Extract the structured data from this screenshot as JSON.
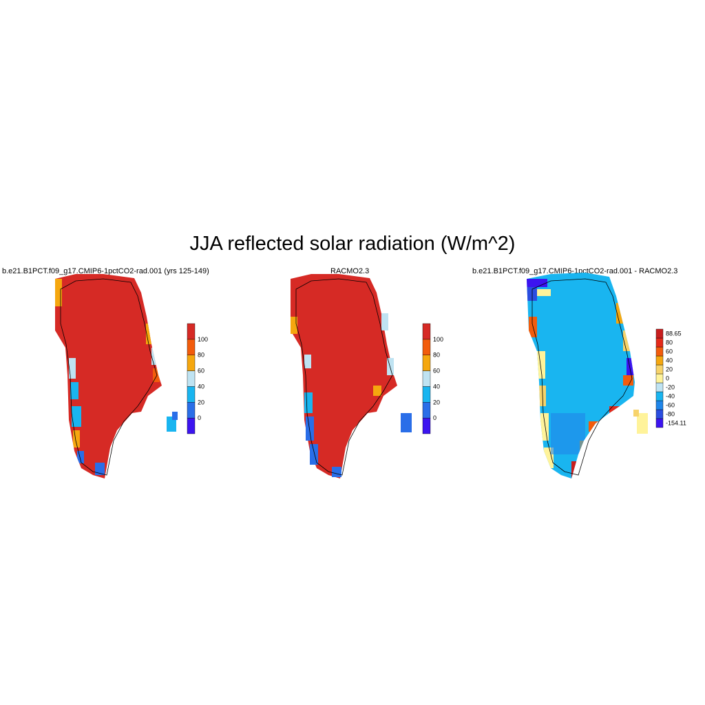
{
  "title": "JJA reflected solar radiation (W/m^2)",
  "panels": [
    {
      "title": "b.e21.B1PCT.f09_g17.CMIP6-1pctCO2-rad.001 (yrs 125-149)",
      "colorbar": {
        "colors": [
          "#3c14f0",
          "#2a6ee8",
          "#19b5f0",
          "#bfe3f2",
          "#f5a70f",
          "#f25c0c",
          "#d62a25"
        ],
        "labels": [
          "0",
          "20",
          "40",
          "60",
          "80",
          "100"
        ]
      }
    },
    {
      "title": "RACMO2.3",
      "colorbar": {
        "colors": [
          "#3c14f0",
          "#2a6ee8",
          "#19b5f0",
          "#bfe3f2",
          "#f5a70f",
          "#f25c0c",
          "#d62a25"
        ],
        "labels": [
          "0",
          "20",
          "40",
          "60",
          "80",
          "100"
        ]
      }
    },
    {
      "title": "b.e21.B1PCT.f09_g17.CMIP6-1pctCO2-rad.001 - RACMO2.3",
      "colorbar": {
        "colors": [
          "#3c14f0",
          "#2a4de0",
          "#1f86ea",
          "#19b5f0",
          "#bfe3f2",
          "#fff39a",
          "#f7d36a",
          "#f5a70f",
          "#f25c0c",
          "#e42a1a",
          "#c81e1e"
        ],
        "labels": [
          "-154.11",
          "-80",
          "-60",
          "-40",
          "-20",
          "0",
          "20",
          "40",
          "60",
          "80",
          "88.65"
        ]
      }
    }
  ]
}
